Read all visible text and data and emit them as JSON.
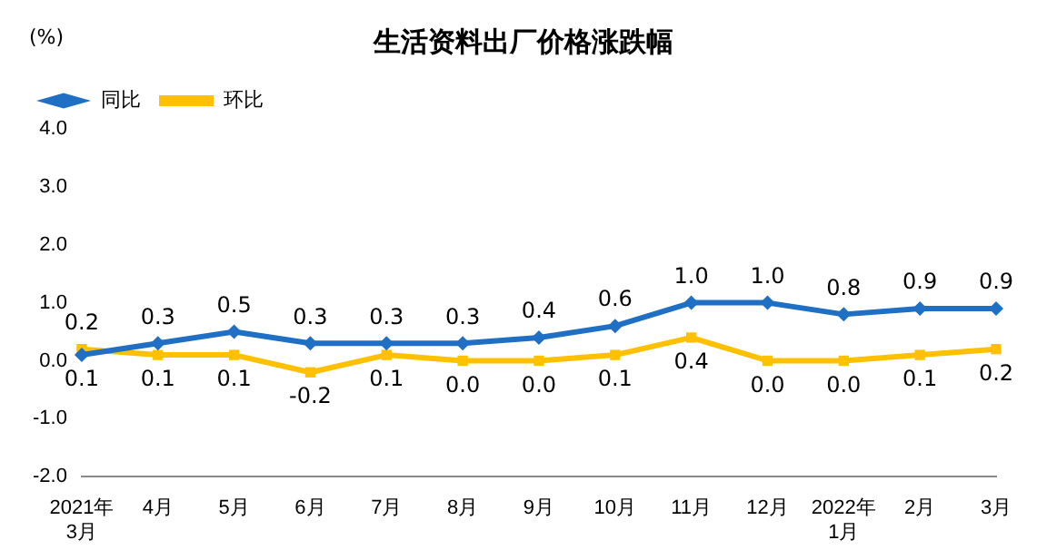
{
  "chart_data": {
    "type": "line",
    "title": "生活资料出厂价格涨跌幅",
    "ylabel": "(%)",
    "categories": [
      "2021年\n3月",
      "4月",
      "5月",
      "6月",
      "7月",
      "8月",
      "9月",
      "10月",
      "11月",
      "12月",
      "2022年\n1月",
      "2月",
      "3月"
    ],
    "series": [
      {
        "name": "同比",
        "color": "#1f6fc5",
        "marker": "diamond",
        "values": [
          0.1,
          0.3,
          0.5,
          0.3,
          0.3,
          0.3,
          0.4,
          0.6,
          1.0,
          1.0,
          0.8,
          0.9,
          0.9
        ],
        "value_labels": [
          "0.1",
          "0.3",
          "0.5",
          "0.3",
          "0.3",
          "0.3",
          "0.4",
          "0.6",
          "1.0",
          "1.0",
          "0.8",
          "0.9",
          "0.9"
        ]
      },
      {
        "name": "环比",
        "color": "#ffc000",
        "marker": "square",
        "values": [
          0.2,
          0.1,
          0.1,
          -0.2,
          0.1,
          0.0,
          0.0,
          0.1,
          0.4,
          0.0,
          0.0,
          0.1,
          0.2
        ],
        "value_labels": [
          "0.2",
          "0.1",
          "0.1",
          "-0.2",
          "0.1",
          "0.0",
          "0.0",
          "0.1",
          "0.4",
          "0.0",
          "0.0",
          "0.1",
          "0.2"
        ]
      }
    ],
    "ylim": [
      -2.0,
      4.0
    ],
    "yticks": [
      {
        "value": -2,
        "label": "-2.0"
      },
      {
        "value": -1,
        "label": "-1.0"
      },
      {
        "value": 0,
        "label": "0.0"
      },
      {
        "value": 1,
        "label": "1.0"
      },
      {
        "value": 2,
        "label": "2.0"
      },
      {
        "value": 3,
        "label": "3.0"
      },
      {
        "value": 4,
        "label": "4.0"
      }
    ],
    "grid": false,
    "legend": "top left",
    "line_style": "solid"
  }
}
